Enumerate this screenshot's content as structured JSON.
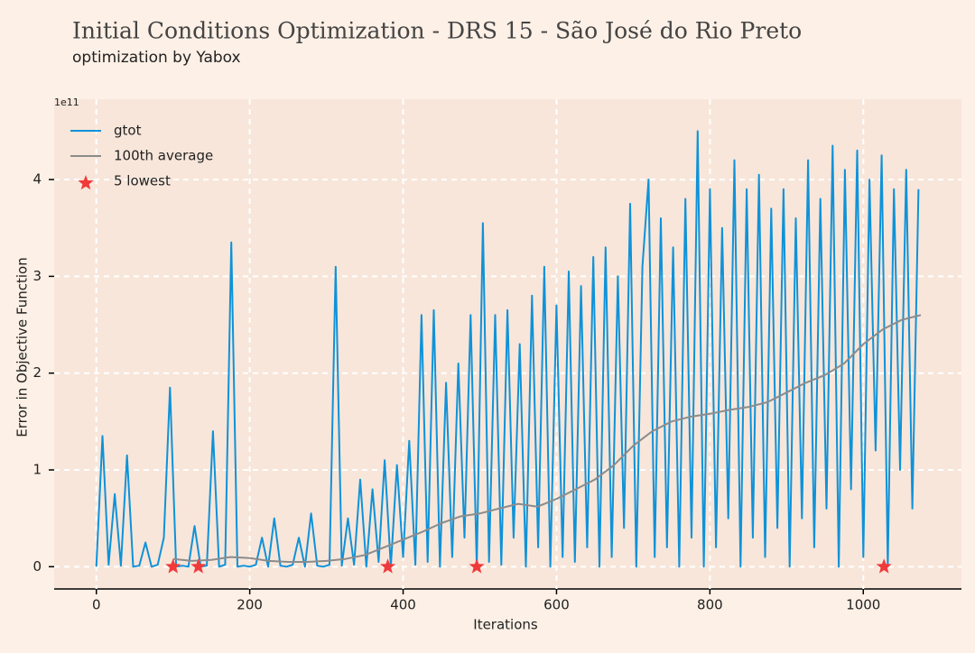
{
  "chart_data": {
    "type": "line",
    "title": "Initial Conditions Optimization - DRS 15 - São José do Rio Preto",
    "subtitle": "optimization by Yabox",
    "x_label": "Iterations",
    "y_label": "Error in Objective Function",
    "y_offset_label": "1e11",
    "xlim": [
      -55,
      1128
    ],
    "ylim": [
      -0.23,
      4.83
    ],
    "xticks": [
      0,
      200,
      400,
      600,
      800,
      1000
    ],
    "yticks": [
      0,
      1,
      2,
      3,
      4
    ],
    "grid": true,
    "legend": "upper left",
    "series": [
      {
        "name": "gtot",
        "style": "line",
        "color": "#0f92d8",
        "x": [
          0,
          8,
          16,
          24,
          32,
          40,
          48,
          56,
          64,
          72,
          80,
          88,
          96,
          104,
          112,
          120,
          128,
          136,
          144,
          152,
          160,
          168,
          176,
          184,
          192,
          200,
          208,
          216,
          224,
          232,
          240,
          248,
          256,
          264,
          272,
          280,
          288,
          296,
          304,
          312,
          320,
          328,
          336,
          344,
          352,
          360,
          368,
          376,
          384,
          392,
          400,
          408,
          416,
          424,
          432,
          440,
          448,
          456,
          464,
          472,
          480,
          488,
          496,
          504,
          512,
          520,
          528,
          536,
          544,
          552,
          560,
          568,
          576,
          584,
          592,
          600,
          608,
          616,
          624,
          632,
          640,
          648,
          656,
          664,
          672,
          680,
          688,
          696,
          704,
          712,
          720,
          728,
          736,
          744,
          752,
          760,
          768,
          776,
          784,
          792,
          800,
          808,
          816,
          824,
          832,
          840,
          848,
          856,
          864,
          872,
          880,
          888,
          896,
          904,
          912,
          920,
          928,
          936,
          944,
          952,
          960,
          968,
          976,
          984,
          992,
          1000,
          1008,
          1016,
          1024,
          1032,
          1040,
          1048,
          1056,
          1064,
          1072
        ],
        "values": [
          0,
          1.35,
          0.02,
          0.75,
          0.01,
          1.15,
          0,
          0.01,
          0.25,
          0,
          0.02,
          0.3,
          1.85,
          0,
          0.01,
          0,
          0.42,
          0,
          0.01,
          1.4,
          0,
          0.02,
          3.35,
          0,
          0.01,
          0,
          0.02,
          0.3,
          0,
          0.5,
          0.01,
          0,
          0.02,
          0.3,
          0,
          0.55,
          0.01,
          0,
          0.02,
          3.1,
          0.01,
          0.5,
          0.02,
          0.9,
          0,
          0.8,
          0.05,
          1.1,
          0,
          1.05,
          0.1,
          1.3,
          0.02,
          2.6,
          0.05,
          2.65,
          0,
          1.9,
          0.1,
          2.1,
          0.3,
          2.6,
          0,
          3.55,
          0.05,
          2.6,
          0.02,
          2.65,
          0.3,
          2.3,
          0,
          2.8,
          0.2,
          3.1,
          0,
          2.7,
          0.1,
          3.05,
          0.05,
          2.9,
          0.2,
          3.2,
          0,
          3.3,
          0.1,
          3.0,
          0.4,
          3.75,
          0,
          3.1,
          4.0,
          0.1,
          3.6,
          0.2,
          3.3,
          0,
          3.8,
          0.3,
          4.5,
          0,
          3.9,
          0.2,
          3.5,
          0.5,
          4.2,
          0,
          3.9,
          0.3,
          4.05,
          0.1,
          3.7,
          0.4,
          3.9,
          0,
          3.6,
          0.5,
          4.2,
          0.2,
          3.8,
          0.6,
          4.35,
          0,
          4.1,
          0.8,
          4.3,
          0.1,
          4.0,
          1.2,
          4.25,
          0,
          3.9,
          1.0,
          4.1,
          0.6,
          3.9
        ]
      },
      {
        "name": "100th average",
        "style": "line",
        "color": "#8c8c8c",
        "x": [
          100,
          125,
          150,
          175,
          200,
          225,
          250,
          275,
          300,
          325,
          350,
          375,
          400,
          425,
          450,
          475,
          500,
          525,
          550,
          575,
          600,
          625,
          650,
          675,
          700,
          725,
          750,
          775,
          800,
          825,
          850,
          875,
          900,
          925,
          950,
          975,
          1000,
          1025,
          1050,
          1075
        ],
        "values": [
          0.08,
          0.06,
          0.07,
          0.1,
          0.09,
          0.06,
          0.05,
          0.05,
          0.06,
          0.08,
          0.12,
          0.2,
          0.28,
          0.36,
          0.45,
          0.52,
          0.55,
          0.6,
          0.65,
          0.62,
          0.7,
          0.8,
          0.9,
          1.05,
          1.25,
          1.4,
          1.5,
          1.55,
          1.58,
          1.62,
          1.65,
          1.7,
          1.8,
          1.9,
          1.98,
          2.1,
          2.3,
          2.45,
          2.55,
          2.6
        ]
      },
      {
        "name": "5 lowest",
        "style": "star",
        "color": "#f03a3a",
        "x": [
          100,
          133,
          380,
          496,
          1027
        ],
        "values": [
          0,
          0,
          0,
          0,
          0
        ]
      }
    ]
  }
}
